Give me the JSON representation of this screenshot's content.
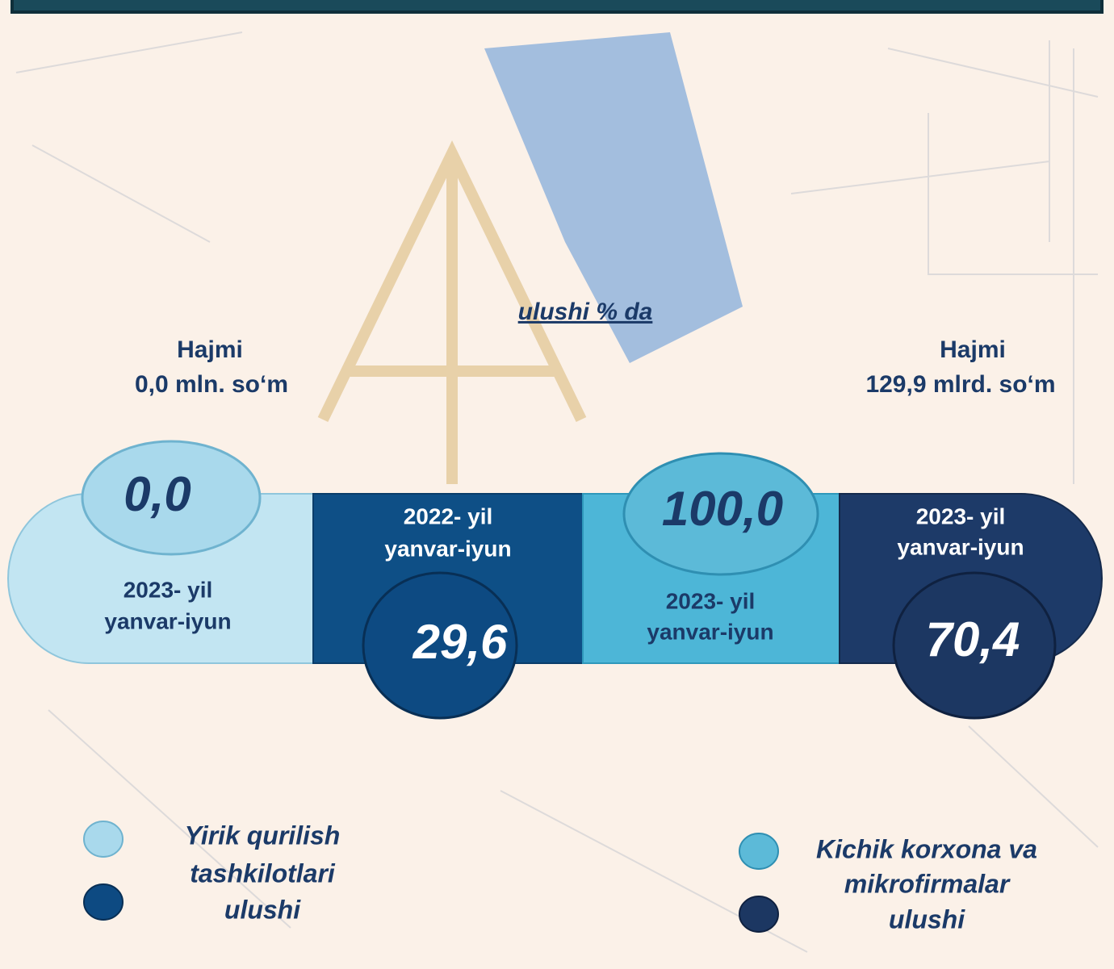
{
  "subtitle": "ulushi % da",
  "totals": [
    {
      "label": "Hajmi",
      "value": "0,0 mln. so‘m"
    },
    {
      "label": "Hajmi",
      "value": "129,9 mlrd. so‘m"
    }
  ],
  "segments": [
    {
      "value": "0,0",
      "period": [
        "2023-  yil",
        "yanvar-iyun"
      ]
    },
    {
      "value": "29,6",
      "period": [
        "2022-  yil",
        "yanvar-iyun"
      ]
    },
    {
      "value": "100,0",
      "period": [
        "2023-  yil",
        "yanvar-iyun"
      ]
    },
    {
      "value": "70,4",
      "period": [
        "2023-  yil",
        "yanvar-iyun"
      ]
    }
  ],
  "legend": [
    {
      "lines": [
        "Yirik qurilish",
        "tashkilotlari",
        "ulushi"
      ]
    },
    {
      "lines": [
        "Kichik korxona va",
        "mikrofirmalar",
        "ulushi"
      ]
    }
  ]
}
